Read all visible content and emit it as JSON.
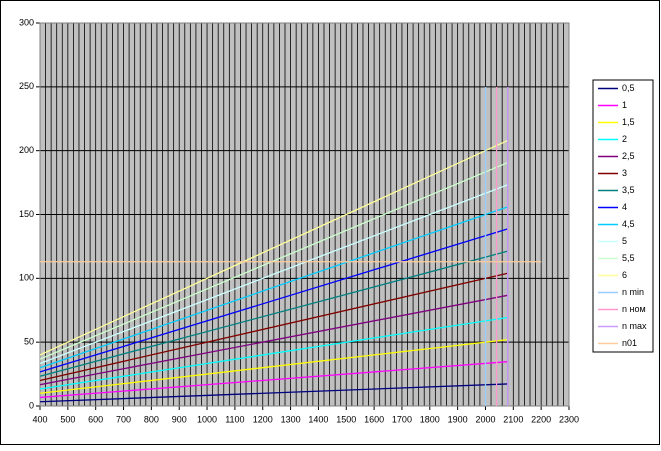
{
  "chart_data": {
    "type": "line",
    "xlim": [
      400,
      2300
    ],
    "xticks": [
      400,
      500,
      600,
      700,
      800,
      900,
      1000,
      1100,
      1200,
      1300,
      1400,
      1500,
      1600,
      1700,
      1800,
      1900,
      2000,
      2100,
      2200,
      2300
    ],
    "ylim": [
      0,
      300
    ],
    "yticks": [
      0,
      50,
      100,
      150,
      200,
      250,
      300
    ],
    "x_minor_step": 20,
    "grid": true,
    "legend": "right",
    "plot_background": "#c0c0c0",
    "series": [
      {
        "name": "0,5",
        "color": "#000080",
        "x": [
          400,
          2080
        ],
        "values": [
          3.3,
          17.3
        ]
      },
      {
        "name": "1",
        "color": "#ff00ff",
        "x": [
          400,
          2080
        ],
        "values": [
          6.7,
          34.7
        ]
      },
      {
        "name": "1,5",
        "color": "#ffff00",
        "x": [
          400,
          2080
        ],
        "values": [
          10,
          52
        ]
      },
      {
        "name": "2",
        "color": "#00ffff",
        "x": [
          400,
          2080
        ],
        "values": [
          13.3,
          69.3
        ]
      },
      {
        "name": "2,5",
        "color": "#800080",
        "x": [
          400,
          2080
        ],
        "values": [
          16.7,
          86.7
        ]
      },
      {
        "name": "3",
        "color": "#800000",
        "x": [
          400,
          2080
        ],
        "values": [
          20,
          104
        ]
      },
      {
        "name": "3,5",
        "color": "#008080",
        "x": [
          400,
          2080
        ],
        "values": [
          23.3,
          121.3
        ]
      },
      {
        "name": "4",
        "color": "#0000ff",
        "x": [
          400,
          2080
        ],
        "values": [
          26.7,
          138.7
        ]
      },
      {
        "name": "4,5",
        "color": "#00ccff",
        "x": [
          400,
          2080
        ],
        "values": [
          30,
          156
        ]
      },
      {
        "name": "5",
        "color": "#ccffff",
        "x": [
          400,
          2080
        ],
        "values": [
          33.3,
          173.3
        ]
      },
      {
        "name": "5,5",
        "color": "#ccffcc",
        "x": [
          400,
          2080
        ],
        "values": [
          36.7,
          190.7
        ]
      },
      {
        "name": "6",
        "color": "#ffff99",
        "x": [
          400,
          2080
        ],
        "values": [
          40,
          208
        ]
      },
      {
        "name": "n min",
        "color": "#99ccff",
        "x": [
          2000,
          2000
        ],
        "values": [
          0,
          250
        ]
      },
      {
        "name": "n ном",
        "color": "#ff99cc",
        "x": [
          2040,
          2040
        ],
        "values": [
          0,
          250
        ]
      },
      {
        "name": "n max",
        "color": "#cc99ff",
        "x": [
          2080,
          2080
        ],
        "values": [
          0,
          250
        ]
      },
      {
        "name": "n01",
        "color": "#ffcc99",
        "x": [
          400,
          2200
        ],
        "values": [
          113,
          113
        ]
      }
    ]
  }
}
